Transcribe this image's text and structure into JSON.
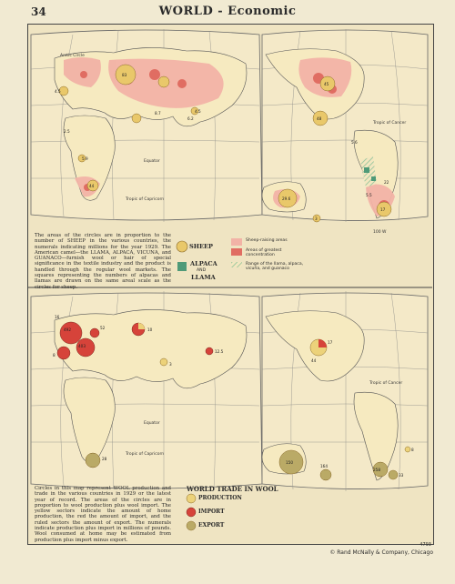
{
  "page_number": "34",
  "title": "WORLD - Economic",
  "colors": {
    "paper": "#f1ead2",
    "ocean": "#efe4c2",
    "land": "#f6eac0",
    "sheep_area": "#f2b3a6",
    "sheep_concentration": "#e06d62",
    "sheep_circle": "#e9c86a",
    "alpaca": "#4f9a78",
    "llama_hatch": "#8dc29a",
    "production": "#ecd27a",
    "import": "#d6433a",
    "export": "#c9b870",
    "grid": "#8a8a86"
  },
  "map_top": {
    "labels": {
      "arctic_circle": "Arctic Circle",
      "equator": "Equator",
      "tropic_capricorn": "Tropic of Capricorn",
      "tropic_cancer": "Tropic of Cancer",
      "scale": "100 W"
    },
    "circle_values": [
      "4.5",
      "83",
      "2.5",
      "8.7",
      "6.2",
      "45",
      "48",
      "5.6",
      "5.9",
      "44",
      "29.6",
      "3",
      "4.5",
      "5.5",
      "17",
      "22"
    ]
  },
  "top_note": "The areas of the circles are in proportion to the number of SHEEP in the various countries, the numerals indicating millions for the year 1929. The American camel—the LLAMA, ALPACA, VICUNA, and GUANACO—furnish wool or hair of special significance in the textile industry and the product is handled through the regular wool markets. The squares representing the numbers of alpacas and llamas are drawn on the same areal scale as the circles for sheep.",
  "top_legend": {
    "sheep": "SHEEP",
    "alpaca": "ALPACA",
    "and": "AND",
    "llama": "LLAMA",
    "sheep_raising": "Sheep-raising areas",
    "greatest_concentration": "Areas of greatest concentration",
    "llama_range": "Range of the llama, alpaca, vicuña, and guanaco"
  },
  "map_bottom": {
    "labels": {
      "equator": "Equator",
      "tropic_capricorn": "Tropic of Capricorn",
      "tropic_cancer": "Tropic of Cancer"
    },
    "values": [
      "16",
      "492",
      "403",
      "52",
      "10",
      "12.5",
      "3",
      "8",
      "28",
      "17",
      "44",
      "150",
      "164",
      "258",
      "33",
      "8"
    ]
  },
  "bottom_note": "Circles in this map represent WOOL production and trade in the various countries in 1929 or the latest year of record. The areas of the circles are in proportion to wool production plus wool import. The yellow sectors indicate the amount of home production, the red the amount of import, and the ruled sectors the amount of export. The numerals indicate production plus import in millions of pounds. Wool consumed at home may be estimated from production plus import minus export.",
  "bottom_legend": {
    "title": "WORLD TRADE IN WOOL",
    "production": "PRODUCTION",
    "import": "IMPORT",
    "export": "EXPORT"
  },
  "code": "4793",
  "credit": "© Rand McNally & Company, Chicago"
}
